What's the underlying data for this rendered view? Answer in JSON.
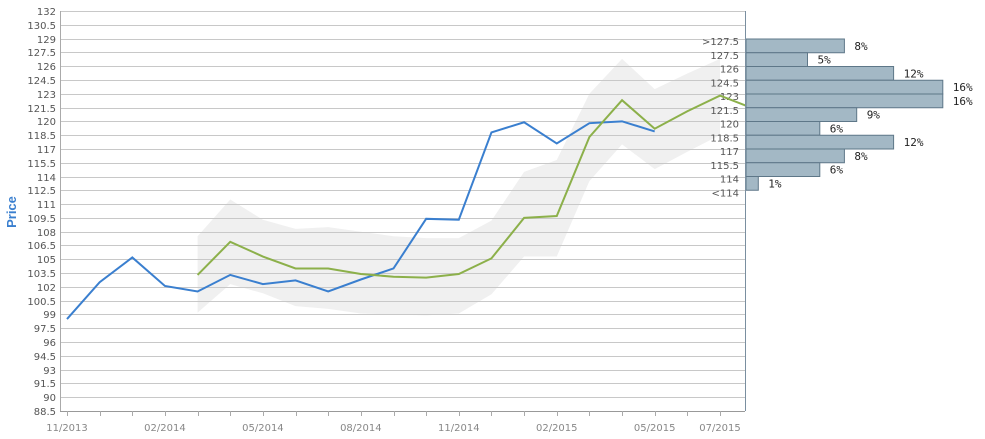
{
  "colors": {
    "series_a": "#3a7fcf",
    "series_b": "#8cb04a",
    "band": "#f0f0f0",
    "grid": "#c8c8c8",
    "hist_bar": "#a3b8c5",
    "hist_stroke": "#5e7788",
    "ylabel": "#3a7fcf"
  },
  "chart_data": [
    {
      "type": "line",
      "ylabel": "Price",
      "ylim": [
        88.5,
        132
      ],
      "yticks": [
        "88.5",
        "90",
        "91.5",
        "93",
        "94.5",
        "96",
        "97.5",
        "99",
        "100.5",
        "102",
        "103.5",
        "105",
        "106.5",
        "108",
        "109.5",
        "111",
        "112.5",
        "114",
        "115.5",
        "117",
        "118.5",
        "120",
        "121.5",
        "123",
        "124.5",
        "126",
        "127.5",
        "129",
        "130.5",
        "132"
      ],
      "xlim": [
        "2013-11",
        "2015-07"
      ],
      "xticks": [
        "11/2013",
        "02/2014",
        "05/2014",
        "08/2014",
        "11/2014",
        "02/2015",
        "05/2015",
        "07/2015"
      ],
      "grid": true,
      "series": [
        {
          "x": [
            "2013-11",
            "2013-12",
            "2014-01",
            "2014-02",
            "2014-03",
            "2014-04",
            "2014-05",
            "2014-06",
            "2014-07",
            "2014-08",
            "2014-09",
            "2014-10",
            "2014-11",
            "2014-12",
            "2015-01",
            "2015-02",
            "2015-03",
            "2015-04",
            "2015-05"
          ],
          "values": [
            98.5,
            102.5,
            105.2,
            102.1,
            101.5,
            103.3,
            102.3,
            102.7,
            101.5,
            102.8,
            104.0,
            109.4,
            109.3,
            118.8,
            119.9,
            117.6,
            119.8,
            120.0,
            118.9
          ]
        },
        {
          "x": [
            "2014-03",
            "2014-04",
            "2014-05",
            "2014-06",
            "2014-07",
            "2014-08",
            "2014-09",
            "2014-10",
            "2014-11",
            "2014-12",
            "2015-01",
            "2015-02",
            "2015-03",
            "2015-04",
            "2015-05",
            "2015-06",
            "2015-07"
          ],
          "values": [
            103.3,
            106.9,
            105.3,
            104.0,
            104.0,
            103.4,
            103.1,
            103.0,
            103.4,
            105.1,
            109.5,
            109.7,
            118.3,
            122.3,
            119.2,
            121.1,
            122.8
          ]
        }
      ],
      "band": {
        "x": [
          "2014-03",
          "2014-04",
          "2014-05",
          "2014-06",
          "2014-07",
          "2014-08",
          "2014-09",
          "2014-10",
          "2014-11",
          "2014-12",
          "2015-01",
          "2015-02",
          "2015-03",
          "2015-04",
          "2015-05",
          "2015-06",
          "2015-07"
        ],
        "upper": [
          107.5,
          111.5,
          109.3,
          108.3,
          108.5,
          108.0,
          107.5,
          107.3,
          107.3,
          109.2,
          114.5,
          115.8,
          123.0,
          126.8,
          123.5,
          125.2,
          126.8
        ],
        "lower": [
          99.2,
          102.3,
          101.3,
          99.9,
          99.6,
          99.1,
          99.0,
          98.9,
          99.1,
          101.2,
          105.3,
          105.3,
          113.5,
          117.5,
          114.8,
          116.7,
          118.5
        ]
      },
      "tail": {
        "x": "2015-07",
        "value": 121.7
      }
    },
    {
      "type": "bar",
      "orientation": "horizontal",
      "categories": [
        ">127.5",
        "127.5",
        "126",
        "124.5",
        "123",
        "121.5",
        "120",
        "118.5",
        "117",
        "115.5",
        "114",
        "<114"
      ],
      "values": [
        8,
        5,
        12,
        16,
        16,
        9,
        6,
        12,
        8,
        6,
        1
      ],
      "labels": [
        "8%",
        "5%",
        "12%",
        "16%",
        "16%",
        "9%",
        "6%",
        "12%",
        "8%",
        "6%",
        "1%"
      ]
    }
  ]
}
